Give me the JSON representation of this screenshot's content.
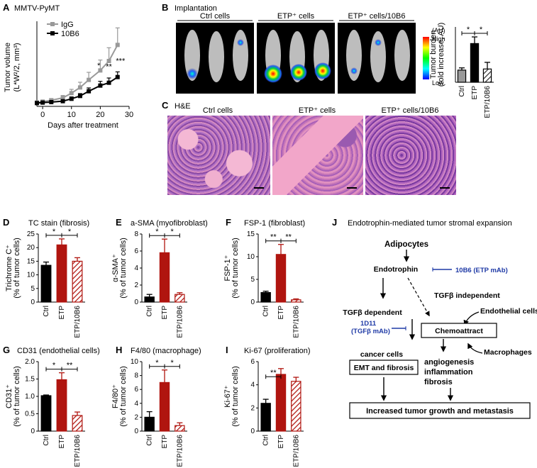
{
  "colors": {
    "black": "#000000",
    "gray": "#999999",
    "red": "#b0150f",
    "stripe": "#b0150f",
    "blue": "#1f3aa6",
    "he_pink": "#dd8ab6",
    "he_purple": "#7c3f9a"
  },
  "panels": {
    "A": {
      "letter": "A",
      "title": "MMTV-PyMT"
    },
    "B": {
      "letter": "B",
      "title": "Implantation",
      "groups": [
        "Ctrl cells",
        "ETP⁺ cells",
        "ETP⁺ cells/10B6"
      ],
      "colorbar": {
        "unit": "(AU)",
        "high": "High",
        "low": "Low"
      }
    },
    "C": {
      "letter": "C",
      "title": "H&E",
      "groups": [
        "Ctrl cells",
        "ETP⁺ cells",
        "ETP⁺ cells/10B6"
      ]
    },
    "D": {
      "letter": "D",
      "title": "TC stain (fibrosis)"
    },
    "E": {
      "letter": "E",
      "title": "a-SMA (myofibroblast)"
    },
    "F": {
      "letter": "F",
      "title": "FSP-1 (fibroblast)"
    },
    "G": {
      "letter": "G",
      "title": "CD31 (endothelial cells)"
    },
    "H": {
      "letter": "H",
      "title": "F4/80 (macrophage)"
    },
    "I": {
      "letter": "I",
      "title": "Ki-67 (proliferation)"
    },
    "J": {
      "letter": "J",
      "title": "Endotrophin-mediated tumor stromal expansion"
    }
  },
  "chart_data": [
    {
      "id": "A",
      "type": "line",
      "xlabel": "Days after treatment",
      "ylabel_1": "Tumor volume",
      "ylabel_2": "(L*W²/2, mm³)",
      "xlim": [
        -2,
        30
      ],
      "xticks": [
        0,
        10,
        20,
        30
      ],
      "ylim": [
        0,
        900
      ],
      "series": [
        {
          "name": "IgG",
          "x": [
            -2,
            0,
            3,
            7,
            10,
            13,
            16,
            20,
            23,
            26
          ],
          "values": [
            40,
            50,
            65,
            90,
            140,
            200,
            280,
            380,
            480,
            650
          ],
          "errors": [
            10,
            12,
            15,
            25,
            40,
            55,
            80,
            110,
            140,
            180
          ]
        },
        {
          "name": "10B6",
          "x": [
            -2,
            0,
            3,
            7,
            10,
            13,
            16,
            20,
            23,
            26
          ],
          "values": [
            35,
            40,
            45,
            55,
            80,
            110,
            160,
            220,
            250,
            310
          ],
          "errors": [
            8,
            10,
            10,
            15,
            20,
            25,
            35,
            45,
            50,
            55
          ]
        }
      ],
      "annotations": [
        "*",
        "**",
        "***"
      ]
    },
    {
      "id": "B",
      "type": "bar",
      "ylabel_1": "Tumor burden",
      "ylabel_2": "(fold increase, AU)",
      "categories": [
        "Ctrl",
        "ETP",
        "ETP/10B6"
      ],
      "values": [
        1.1,
        3.5,
        1.2
      ],
      "errors": [
        0.2,
        0.6,
        0.6
      ],
      "ylim": [
        0,
        5
      ],
      "significance": [
        "*",
        "*"
      ]
    },
    {
      "id": "D",
      "type": "bar",
      "ylabel_1": "Trichrome C⁺",
      "ylabel_2": "(% of tumor cells)",
      "categories": [
        "Ctrl",
        "ETP",
        "ETP/10B6"
      ],
      "values": [
        13.5,
        21,
        15
      ],
      "errors": [
        1.2,
        2.2,
        1.3
      ],
      "ylim": [
        0,
        25
      ],
      "yticks": [
        0,
        5,
        10,
        15,
        20,
        25
      ],
      "significance": [
        "*",
        "*"
      ]
    },
    {
      "id": "E",
      "type": "bar",
      "ylabel_1": "α-SMA⁺",
      "ylabel_2": "(% of tumor cells)",
      "categories": [
        "Ctrl",
        "ETP",
        "ETP/10B6"
      ],
      "values": [
        0.6,
        5.8,
        0.9
      ],
      "errors": [
        0.3,
        1.6,
        0.2
      ],
      "ylim": [
        0,
        8
      ],
      "yticks": [
        0,
        2,
        4,
        6,
        8
      ],
      "significance": [
        "*",
        "*"
      ]
    },
    {
      "id": "F",
      "type": "bar",
      "ylabel_1": "FSP-1⁺",
      "ylabel_2": "(% of tumor cells)",
      "categories": [
        "Ctrl",
        "ETP",
        "ETP/10B6"
      ],
      "values": [
        2.1,
        10.5,
        0.5
      ],
      "errors": [
        0.3,
        2.2,
        0.2
      ],
      "ylim": [
        0,
        15
      ],
      "yticks": [
        0,
        5,
        10,
        15
      ],
      "significance": [
        "**",
        "**"
      ]
    },
    {
      "id": "G",
      "type": "bar",
      "ylabel_1": "CD31⁺",
      "ylabel_2": "(% of tumor cells)",
      "categories": [
        "Ctrl",
        "ETP",
        "ETP/10B6"
      ],
      "values": [
        1.02,
        1.48,
        0.45
      ],
      "errors": [
        0.02,
        0.2,
        0.1
      ],
      "ylim": [
        0,
        2.0
      ],
      "yticks": [
        0,
        0.5,
        1.0,
        1.5,
        2.0
      ],
      "ytick_labels": [
        "0",
        "0.5",
        "1.0",
        "1.5",
        "2.0"
      ],
      "significance": [
        "*",
        "**"
      ]
    },
    {
      "id": "H",
      "type": "bar",
      "ylabel_1": "F4/80⁺",
      "ylabel_2": "(% of tumor cells)",
      "categories": [
        "Ctrl",
        "ETP",
        "ETP/10B6"
      ],
      "values": [
        2.0,
        7.0,
        0.8
      ],
      "errors": [
        0.8,
        1.8,
        0.4
      ],
      "ylim": [
        0,
        10
      ],
      "yticks": [
        0,
        2,
        4,
        6,
        8,
        10
      ],
      "significance": [
        "*",
        "*"
      ]
    },
    {
      "id": "I",
      "type": "bar",
      "ylabel_1": "Ki-67⁺",
      "ylabel_2": "(% of tumor cells)",
      "categories": [
        "Ctrl",
        "ETP",
        "ETP/10B6"
      ],
      "values": [
        2.4,
        4.9,
        4.3
      ],
      "errors": [
        0.35,
        0.5,
        0.35
      ],
      "ylim": [
        0,
        6
      ],
      "yticks": [
        0,
        2,
        4,
        6
      ],
      "significance": [
        "**"
      ]
    }
  ],
  "diagram": {
    "adipocytes": "Adipocytes",
    "endotrophin": "Endotrophin",
    "mab_10b6": "10B6 (ETP mAb)",
    "tgfb_independent": "TGFβ independent",
    "tgfb_dependent": "TGFβ dependent",
    "endothelial": "Endothelial cells",
    "mab_1d11_a": "1D11",
    "mab_1d11_b": "(TGFβ mAb)",
    "chemoattract": "Chemoattract",
    "macrophages": "Macrophages",
    "cancer_cells": "cancer cells",
    "emt": "EMT and fibrosis",
    "angiogenesis": "angiogenesis",
    "inflammation": "inflammation",
    "fibrosis": "fibrosis",
    "result": "Increased tumor growth and metastasis"
  }
}
